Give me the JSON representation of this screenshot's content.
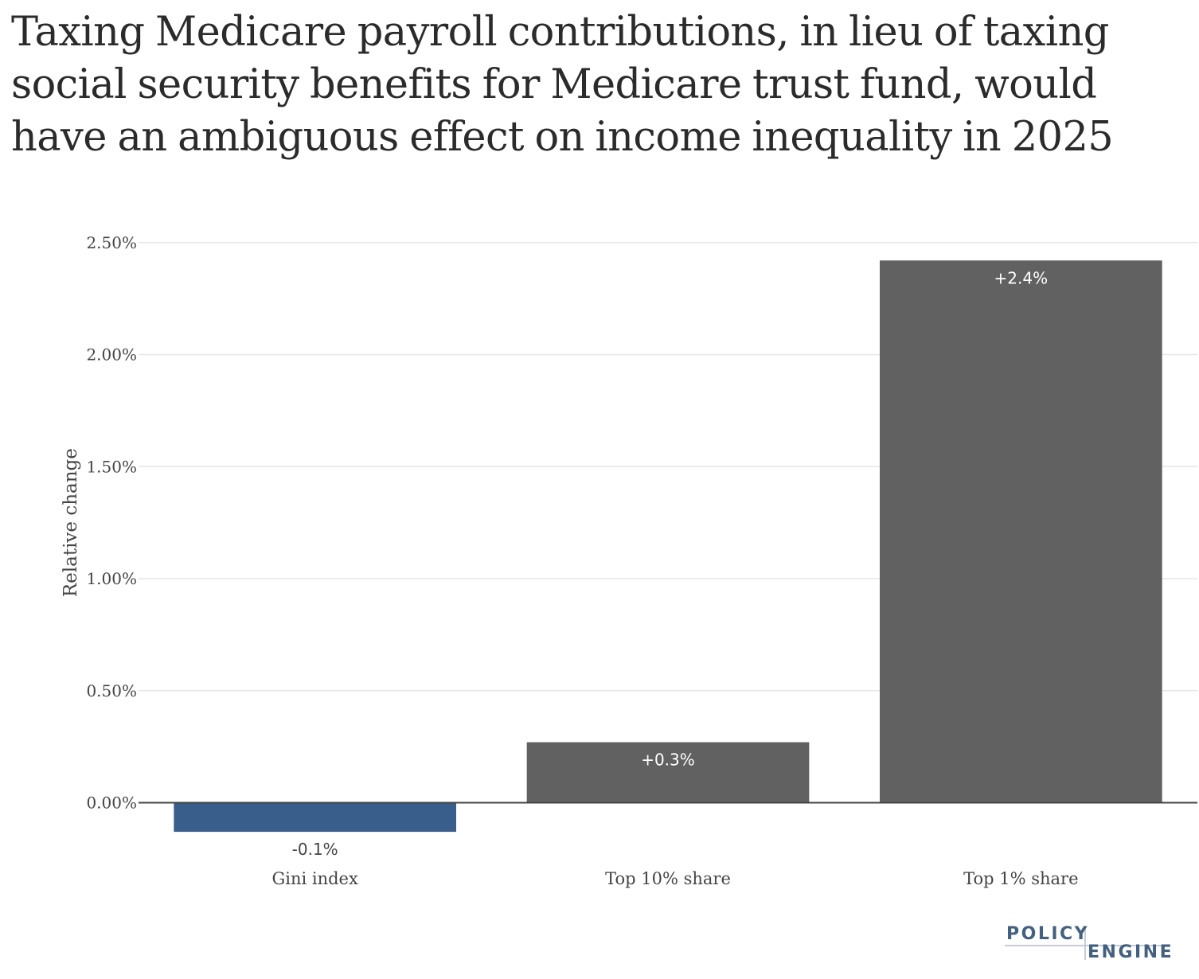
{
  "chart_data": {
    "type": "bar",
    "title": "Taxing Medicare payroll contributions, in lieu of taxing social security benefits for Medicare trust fund, would have an ambiguous effect on income inequality in 2025",
    "xlabel": "",
    "ylabel": "Relative change",
    "categories": [
      "Gini index",
      "Top 10% share",
      "Top 1% share"
    ],
    "values": [
      -0.13,
      0.27,
      2.42
    ],
    "data_labels": [
      "-0.1%",
      "+0.3%",
      "+2.4%"
    ],
    "bar_colors": [
      "#3a5e8c",
      "#616161",
      "#616161"
    ],
    "ylim": [
      -0.25,
      2.62
    ],
    "yticks": [
      0,
      0.5,
      1.0,
      1.5,
      2.0,
      2.5
    ],
    "ytick_labels": [
      "0.00%",
      "0.50%",
      "1.00%",
      "1.50%",
      "2.00%",
      "2.50%"
    ],
    "grid": true,
    "legend": "none"
  },
  "branding": {
    "logo_line1": "POLICY",
    "logo_line2": "ENGINE"
  },
  "colors": {
    "gridline": "#e6e6e6",
    "zeroline": "#444444",
    "negative_bar": "#3a5e8c",
    "positive_bar": "#616161",
    "text": "#444444",
    "logo": "#44607f"
  }
}
